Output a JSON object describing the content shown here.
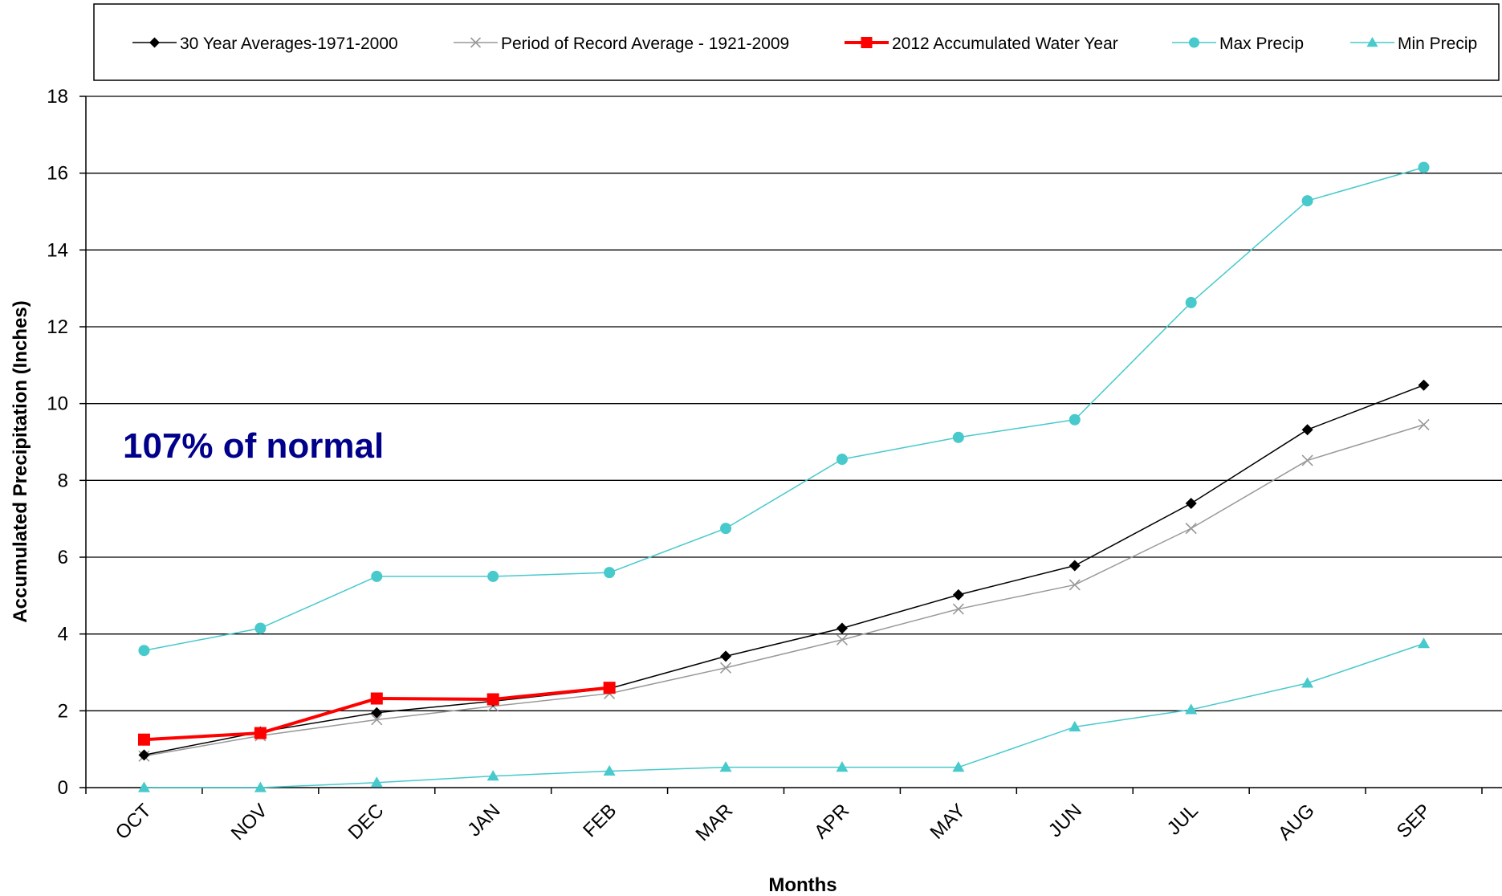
{
  "chart_data": {
    "type": "line",
    "title": "",
    "xlabel": "Months",
    "ylabel": "Accumulated  Precipitation  (Inches)",
    "categories": [
      "OCT",
      "NOV",
      "DEC",
      "JAN",
      "FEB",
      "MAR",
      "APR",
      "MAY",
      "JUN",
      "JUL",
      "AUG",
      "SEP"
    ],
    "ylim": [
      0,
      18
    ],
    "yticks": [
      0,
      2,
      4,
      6,
      8,
      10,
      12,
      14,
      16,
      18
    ],
    "grid": true,
    "legend_position": "top",
    "annotation": {
      "text": "107% of normal",
      "color": "#00008b"
    },
    "series": [
      {
        "name": "30 Year Averages-1971-2000",
        "color": "#000000",
        "marker": "diamond",
        "width": 1.5,
        "values": [
          0.85,
          1.45,
          1.95,
          2.25,
          2.58,
          3.42,
          4.15,
          5.02,
          5.78,
          7.4,
          9.32,
          10.48
        ]
      },
      {
        "name": "Period of Record Average - 1921-2009",
        "color": "#999999",
        "marker": "x",
        "width": 1.5,
        "values": [
          0.82,
          1.35,
          1.77,
          2.12,
          2.45,
          3.12,
          3.85,
          4.65,
          5.28,
          6.75,
          8.52,
          9.45
        ]
      },
      {
        "name": "2012 Accumulated Water Year",
        "color": "#ff0000",
        "marker": "square",
        "width": 4,
        "values": [
          1.25,
          1.42,
          2.32,
          2.3,
          2.6,
          null,
          null,
          null,
          null,
          null,
          null,
          null
        ]
      },
      {
        "name": "Max Precip",
        "color": "#48c9cc",
        "marker": "circle",
        "width": 1.5,
        "values": [
          3.57,
          4.15,
          5.5,
          5.5,
          5.6,
          6.75,
          8.55,
          9.12,
          9.58,
          12.63,
          15.28,
          16.15
        ]
      },
      {
        "name": "Min Precip",
        "color": "#48c9cc",
        "marker": "triangle",
        "width": 1.5,
        "values": [
          0.0,
          0.0,
          0.13,
          0.3,
          0.43,
          0.53,
          0.53,
          0.53,
          1.58,
          2.03,
          2.72,
          3.75
        ]
      }
    ]
  }
}
